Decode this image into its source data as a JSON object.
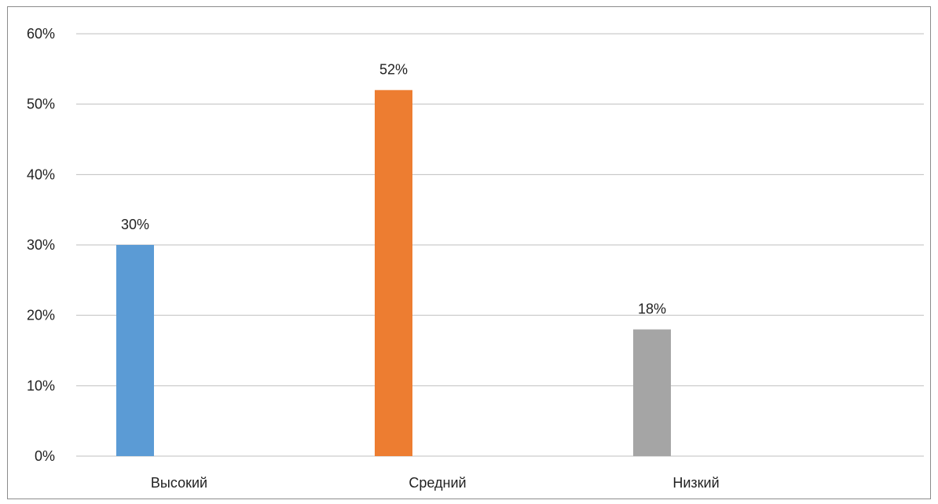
{
  "chart_data": {
    "type": "bar",
    "categories": [
      "Высокий",
      "Средний",
      "Низкий"
    ],
    "values": [
      30,
      52,
      18
    ],
    "data_labels": [
      "30%",
      "52%",
      "18%"
    ],
    "colors": [
      "#5b9bd5",
      "#ed7d31",
      "#a5a5a5"
    ],
    "title": "",
    "xlabel": "",
    "ylabel": "",
    "ylim": [
      0,
      60
    ],
    "yticks": [
      0,
      10,
      20,
      30,
      40,
      50,
      60
    ],
    "ytick_labels": [
      "0%",
      "10%",
      "20%",
      "30%",
      "40%",
      "50%",
      "60%"
    ],
    "grid": true,
    "legend": "none"
  }
}
